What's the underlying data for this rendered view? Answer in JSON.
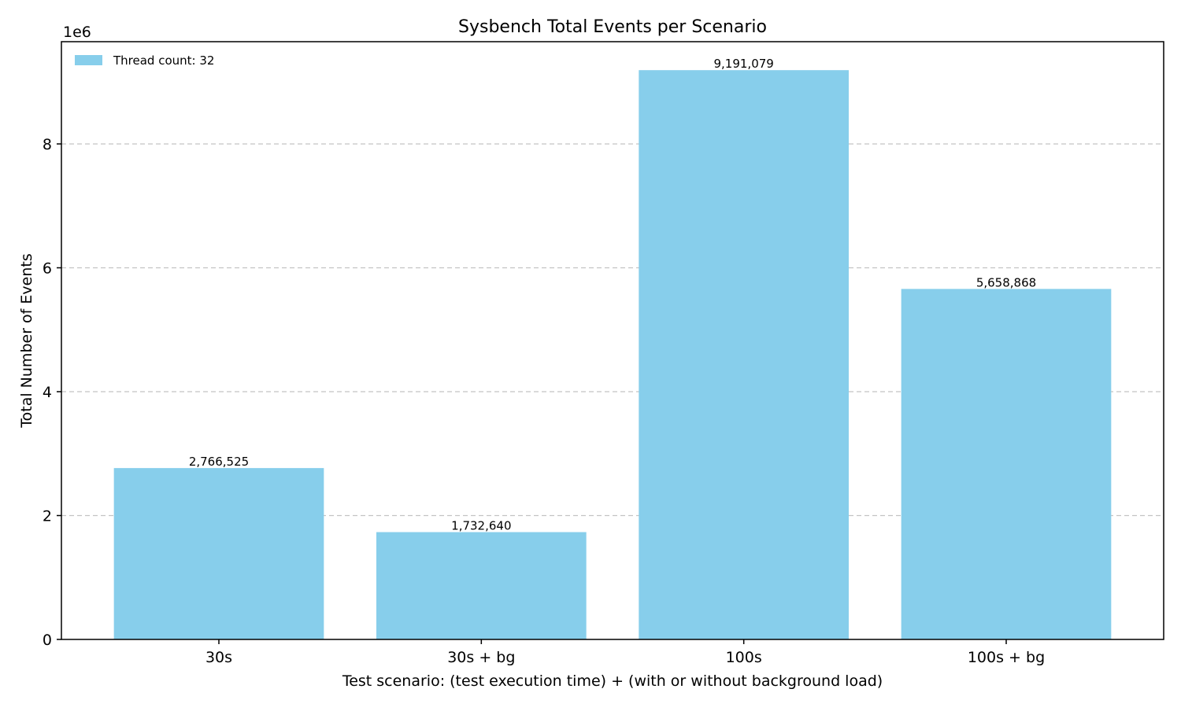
{
  "chart_data": {
    "type": "bar",
    "title": "Sysbench Total Events per Scenario",
    "xlabel": "Test scenario: (test execution time) + (with or without background load)",
    "ylabel": "Total Number of Events",
    "y_offset_label": "1e6",
    "categories": [
      "30s",
      "30s + bg",
      "100s",
      "100s + bg"
    ],
    "series": [
      {
        "name": "Thread count: 32",
        "values": [
          2766525,
          1732640,
          9191079,
          5658868
        ],
        "data_labels": [
          "2,766,525",
          "1,732,640",
          "9,191,079",
          "5,658,868"
        ],
        "color": "#87ceeb"
      }
    ],
    "ylim": [
      0,
      9650633
    ],
    "yticks": [
      0,
      2000000,
      4000000,
      6000000,
      8000000
    ],
    "ytick_labels": [
      "0",
      "2",
      "4",
      "6",
      "8"
    ],
    "grid": "y-axis dashed",
    "legend_position": "upper-left"
  }
}
